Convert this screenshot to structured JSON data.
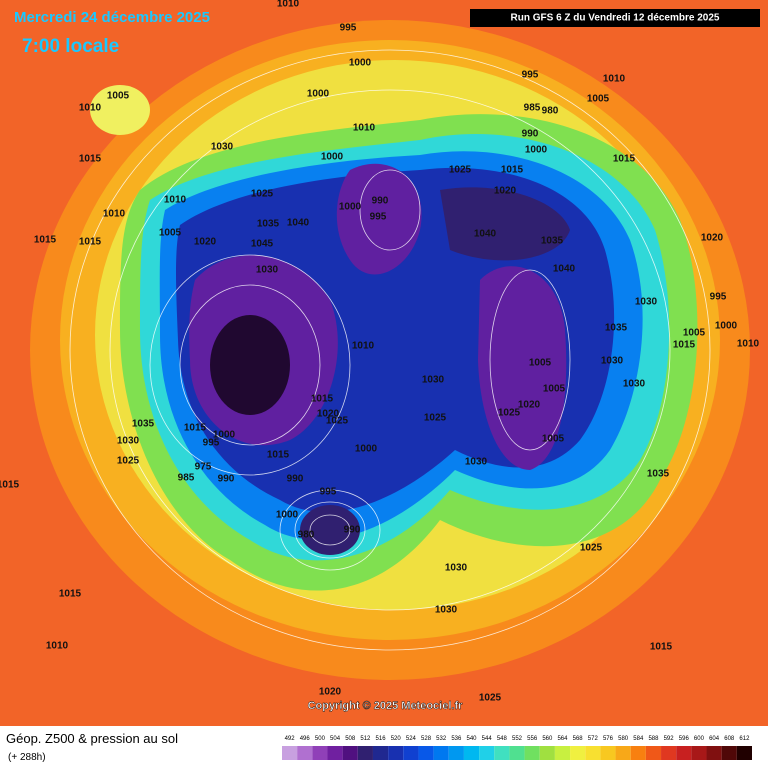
{
  "header": {
    "date": "Mercredi 24 décembre 2025",
    "time": "7:00 locale",
    "run": "Run GFS 6 Z du Vendredi 12 décembre 2025"
  },
  "copyright": "Copyright © 2025 Meteociel.fr",
  "footer": {
    "title": "Géop. Z500 & pression au sol",
    "lead": "(+ 288h)"
  },
  "scale": {
    "labels": [
      492,
      496,
      500,
      504,
      508,
      512,
      516,
      520,
      524,
      528,
      532,
      536,
      540,
      544,
      548,
      552,
      556,
      560,
      564,
      568,
      572,
      576,
      580,
      584,
      588,
      592,
      596,
      600,
      604,
      608,
      612
    ],
    "colors": [
      "#c8a0e0",
      "#b070d0",
      "#9040b8",
      "#7020a0",
      "#501080",
      "#302070",
      "#202890",
      "#1830b0",
      "#1040d0",
      "#0858e8",
      "#0078f0",
      "#0098f0",
      "#00b8f0",
      "#20d0e8",
      "#40e0c0",
      "#50e090",
      "#70e060",
      "#a0e040",
      "#c8f040",
      "#f0f040",
      "#f8e030",
      "#f8c820",
      "#f8a818",
      "#f88010",
      "#f05818",
      "#e03820",
      "#c82020",
      "#a81818",
      "#801010",
      "#500808",
      "#200000"
    ]
  },
  "isobar_labels": [
    1010,
    995,
    1000,
    1005,
    1010,
    1000,
    995,
    1010,
    1005,
    985,
    980,
    990,
    1000,
    1015,
    1030,
    1015,
    1000,
    1010,
    1025,
    1015,
    1020,
    1025,
    1010,
    990,
    995,
    1000,
    1040,
    1035,
    1040,
    1035,
    1045,
    1020,
    1015,
    1015,
    1010,
    1005,
    1040,
    1030,
    1030,
    995,
    1020,
    1035,
    1005,
    1000,
    1010,
    1015,
    1010,
    1030,
    1005,
    1030,
    1005,
    1030,
    1015,
    1020,
    1025,
    1020,
    1025,
    1025,
    1035,
    1015,
    1000,
    995,
    1030,
    1005,
    1000,
    1015,
    1025,
    1030,
    975,
    985,
    990,
    990,
    995,
    1035,
    1015,
    1000,
    980,
    990,
    1025,
    1030,
    1030,
    1015,
    1010,
    1015,
    1020,
    1025
  ]
}
